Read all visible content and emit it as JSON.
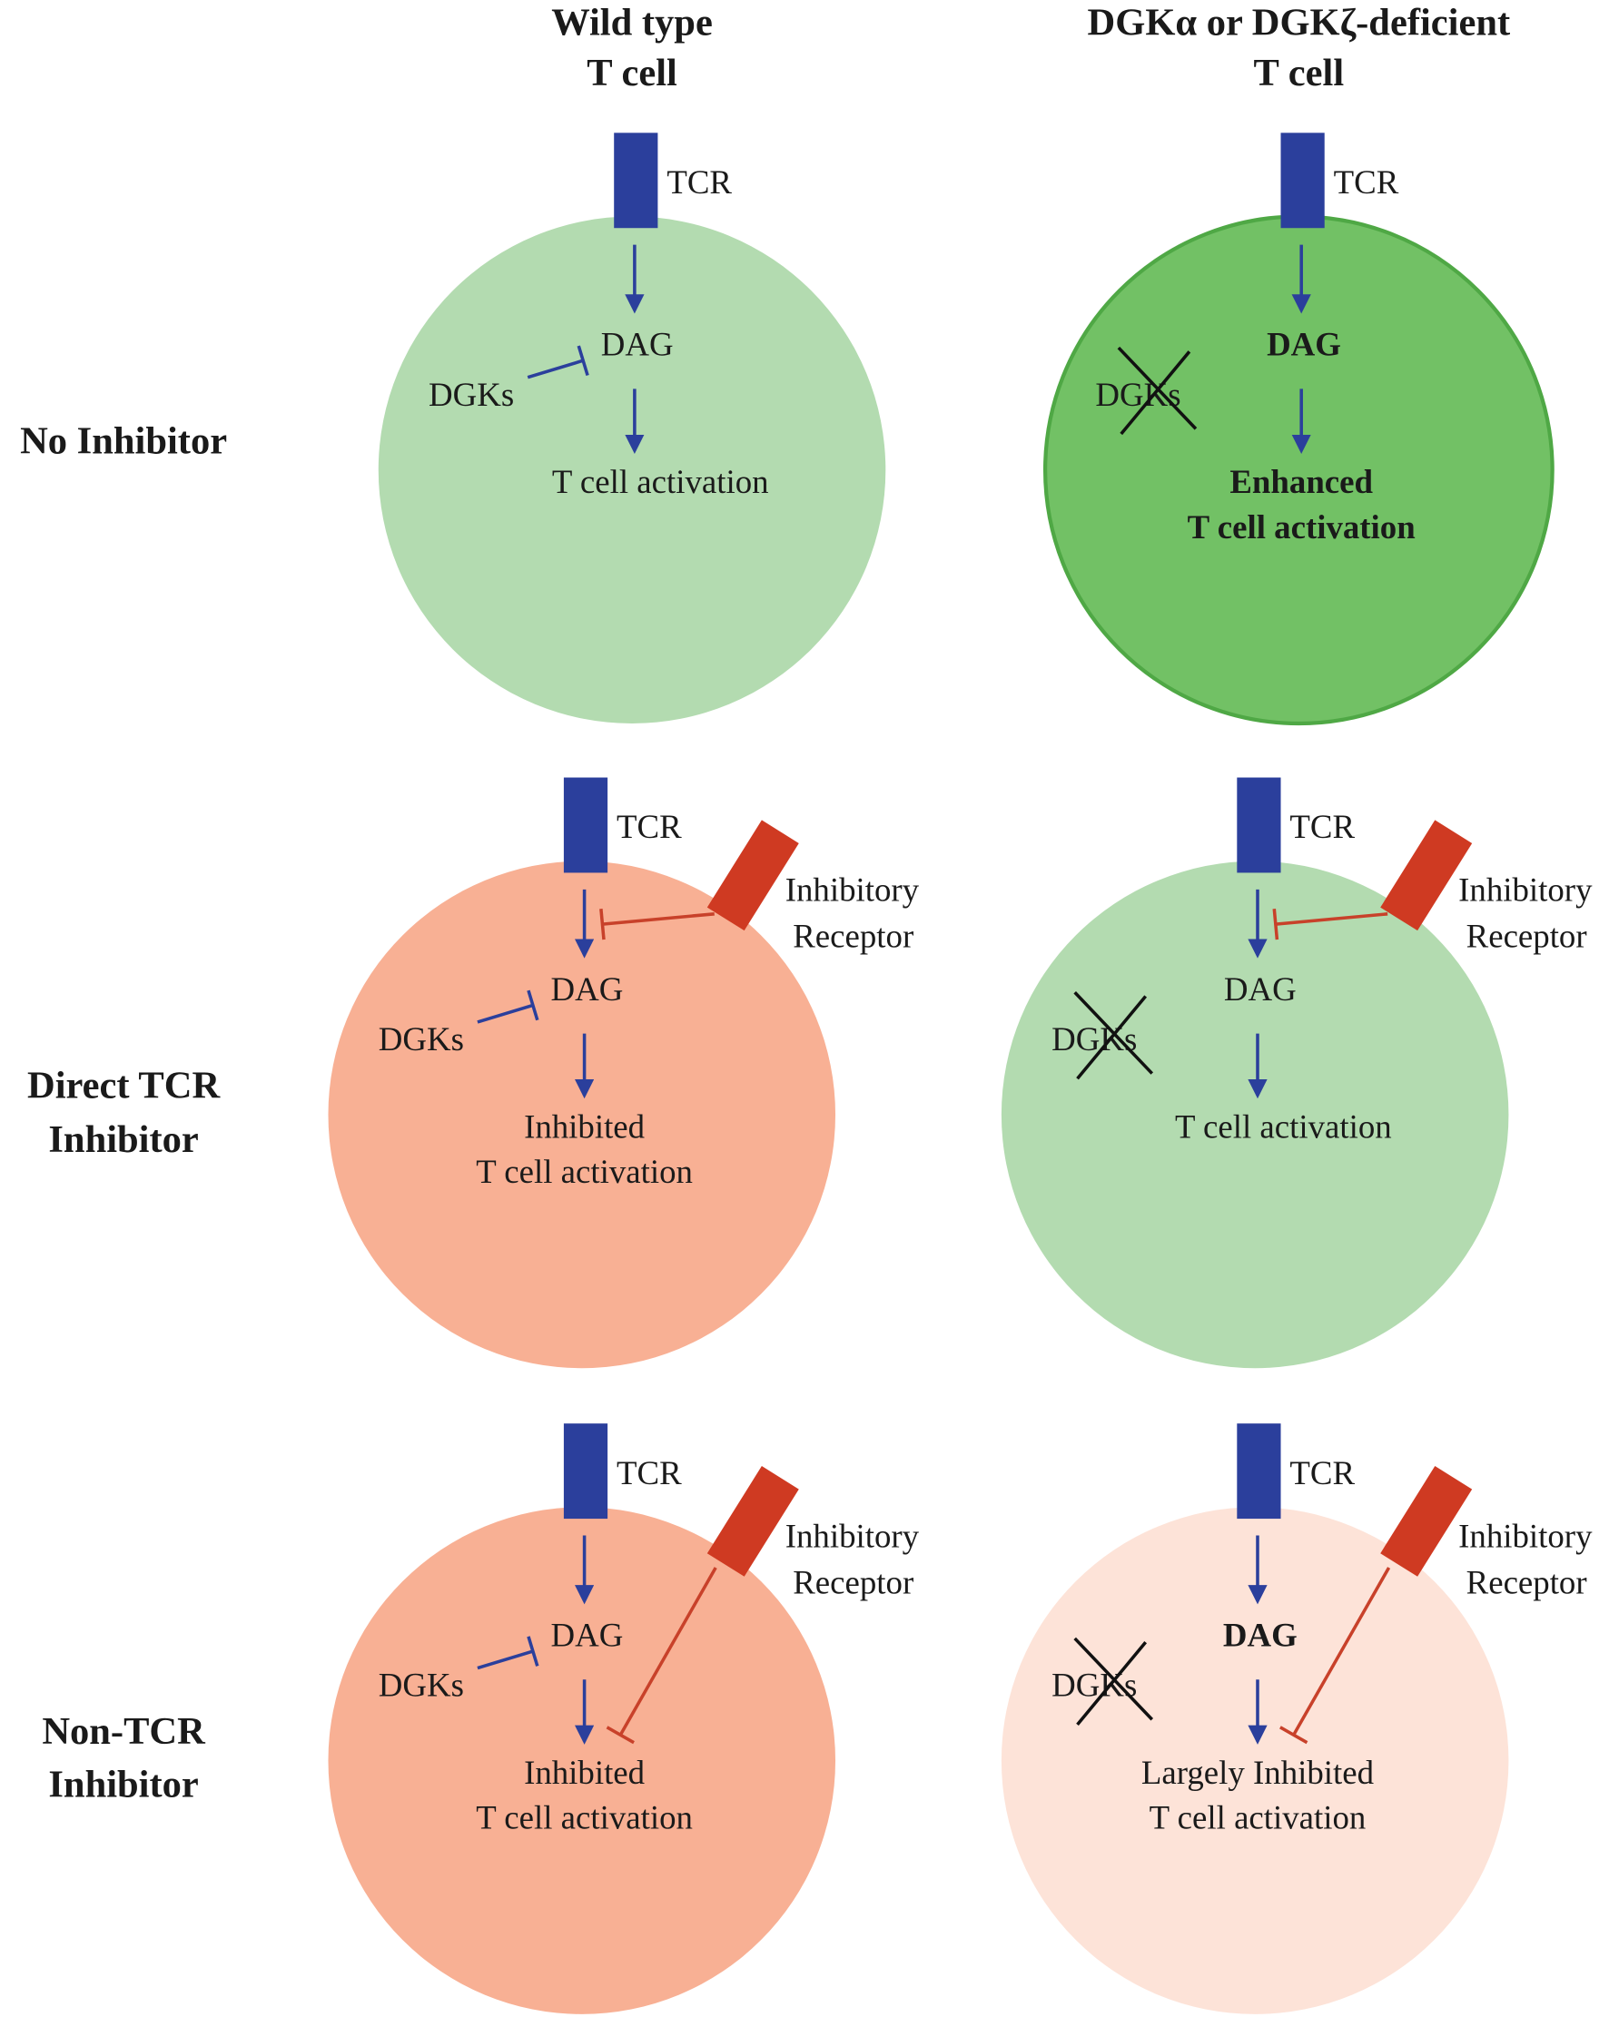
{
  "columns": [
    {
      "line1": "Wild type",
      "line2": "T cell"
    },
    {
      "line1": "DGKα or DGKζ-deficient",
      "line2": "T cell"
    }
  ],
  "rows": [
    {
      "line1": "No Inhibitor",
      "line2": ""
    },
    {
      "line1": "Direct TCR",
      "line2": "Inhibitor"
    },
    {
      "line1": "Non-TCR",
      "line2": "Inhibitor"
    }
  ],
  "colors": {
    "tcr": "#2b3f9c",
    "inhibitory_receptor": "#cf3a22",
    "arrow": "#2b3f9c",
    "inhibition_line": "#c8412a",
    "cell_light_green": "#b3dbb0",
    "cell_dark_green": "#72c165",
    "cell_salmon": "#f8b094",
    "cell_pale_salmon": "#fde3d8",
    "inhibited_text": "#8a7770"
  },
  "panels": [
    {
      "id": "wt-no-inhibitor",
      "fill": "#b3dbb0",
      "tcr": "TCR",
      "dag": "DAG",
      "dgks": "DGKs",
      "dgks_deleted": false,
      "dag_bold": false,
      "dag_gray": false,
      "outcome1": "T cell activation",
      "outcome2": "",
      "outcome_bold": false,
      "outcome_gray": false,
      "receptor": null
    },
    {
      "id": "ko-no-inhibitor",
      "fill": "#72c165",
      "tcr": "TCR",
      "dag": "DAG",
      "dgks": "DGKs",
      "dgks_deleted": true,
      "dag_bold": true,
      "dag_gray": false,
      "outcome1": "Enhanced",
      "outcome2": "T cell activation",
      "outcome_bold": true,
      "outcome_gray": false,
      "receptor": null
    },
    {
      "id": "wt-direct-tcr",
      "fill": "#f8b094",
      "tcr": "TCR",
      "dag": "DAG",
      "dgks": "DGKs",
      "dgks_deleted": false,
      "dag_bold": false,
      "dag_gray": true,
      "outcome1": "Inhibited",
      "outcome2": "T cell activation",
      "outcome_bold": false,
      "outcome_gray": true,
      "receptor": {
        "line1": "Inhibitory",
        "line2": "Receptor",
        "target": "TCR"
      }
    },
    {
      "id": "ko-direct-tcr",
      "fill": "#b3dbb0",
      "tcr": "TCR",
      "dag": "DAG",
      "dgks": "DGKs",
      "dgks_deleted": true,
      "dag_bold": false,
      "dag_gray": false,
      "outcome1": "T cell activation",
      "outcome2": "",
      "outcome_bold": false,
      "outcome_gray": false,
      "receptor": {
        "line1": "Inhibitory",
        "line2": "Receptor",
        "target": "TCR"
      }
    },
    {
      "id": "wt-non-tcr",
      "fill": "#f8b094",
      "tcr": "TCR",
      "dag": "DAG",
      "dgks": "DGKs",
      "dgks_deleted": false,
      "dag_bold": false,
      "dag_gray": false,
      "outcome1": "Inhibited",
      "outcome2": "T cell activation",
      "outcome_bold": false,
      "outcome_gray": true,
      "receptor": {
        "line1": "Inhibitory",
        "line2": "Receptor",
        "target": "downstream"
      }
    },
    {
      "id": "ko-non-tcr",
      "fill": "#fde3d8",
      "tcr": "TCR",
      "dag": "DAG",
      "dgks": "DGKs",
      "dgks_deleted": true,
      "dag_bold": true,
      "dag_gray": false,
      "outcome1": "Largely Inhibited",
      "outcome2": "T cell activation",
      "outcome_bold": false,
      "outcome_gray": true,
      "receptor": {
        "line1": "Inhibitory",
        "line2": "Receptor",
        "target": "downstream"
      }
    }
  ]
}
